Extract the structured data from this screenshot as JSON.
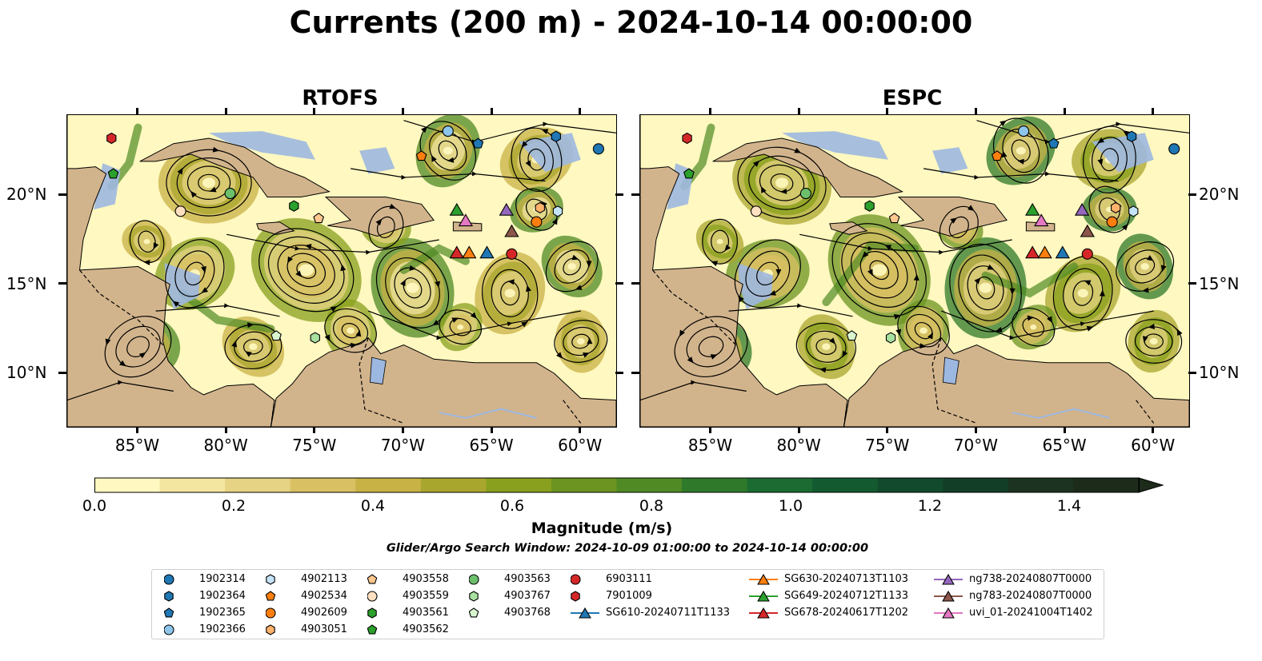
{
  "title": "Currents (200 m) - 2024-10-14 00:00:00",
  "panels": [
    {
      "title": "RTOFS"
    },
    {
      "title": "ESPC"
    }
  ],
  "axes": {
    "x_ticks": [
      "85°W",
      "80°W",
      "75°W",
      "70°W",
      "65°W",
      "60°W"
    ],
    "y_ticks": [
      "20°N",
      "15°N",
      "10°N"
    ]
  },
  "colorbar": {
    "label": "Magnitude (m/s)",
    "ticks": [
      "0.0",
      "0.2",
      "0.4",
      "0.6",
      "0.8",
      "1.0",
      "1.2",
      "1.4"
    ],
    "range": [
      0,
      1.5
    ],
    "extend": "max",
    "colors": [
      "#fff8c0",
      "#f3e6a0",
      "#e6d383",
      "#d9c063",
      "#c8b246",
      "#a9a62e",
      "#88a01e",
      "#6b9420",
      "#4f8a24",
      "#2f7a2a",
      "#1b6b32",
      "#145a30",
      "#114a2c",
      "#123e27",
      "#1b3320",
      "#1c2b1a"
    ]
  },
  "search_window": "Glider/Argo Search Window: 2024-10-09 01:00:00 to 2024-10-14 00:00:00",
  "map_colors": {
    "land": "#d2b48c",
    "shallow": "#9db8e0",
    "river": "#9db8e0"
  },
  "legend": [
    {
      "label": "1902314",
      "marker": "circle",
      "color": "#1f77b4"
    },
    {
      "label": "1902364",
      "marker": "hexagon",
      "color": "#1f77b4"
    },
    {
      "label": "1902365",
      "marker": "pentagon",
      "color": "#1f77b4"
    },
    {
      "label": "1902366",
      "marker": "circle",
      "color": "#8ec5eb"
    },
    {
      "label": "4902113",
      "marker": "hexagon",
      "color": "#c5e3f7"
    },
    {
      "label": "4902534",
      "marker": "pentagon",
      "color": "#ff7f0e"
    },
    {
      "label": "4902609",
      "marker": "circle",
      "color": "#ff7f0e"
    },
    {
      "label": "4903051",
      "marker": "hexagon",
      "color": "#ffb26b"
    },
    {
      "label": "4903558",
      "marker": "pentagon",
      "color": "#ffc890"
    },
    {
      "label": "4903559",
      "marker": "circle",
      "color": "#ffe0c0"
    },
    {
      "label": "4903561",
      "marker": "hexagon",
      "color": "#2ca02c"
    },
    {
      "label": "4903562",
      "marker": "pentagon",
      "color": "#2ca02c"
    },
    {
      "label": "4903563",
      "marker": "circle",
      "color": "#6cc06c"
    },
    {
      "label": "4903767",
      "marker": "hexagon",
      "color": "#a8e0a0"
    },
    {
      "label": "4903768",
      "marker": "pentagon",
      "color": "#d8f5d0"
    },
    {
      "label": "6903111",
      "marker": "circle",
      "color": "#d62728"
    },
    {
      "label": "7901009",
      "marker": "hexagon",
      "color": "#d62728"
    },
    {
      "label": "SG610-20240711T1133",
      "marker": "triangle",
      "color": "#1f77b4"
    },
    {
      "label": "SG630-20240713T1103",
      "marker": "triangle",
      "color": "#ff7f0e"
    },
    {
      "label": "SG649-20240712T1133",
      "marker": "triangle",
      "color": "#2ca02c"
    },
    {
      "label": "SG678-20240617T1202",
      "marker": "triangle",
      "color": "#d62728"
    },
    {
      "label": "ng738-20240807T0000",
      "marker": "triangle",
      "color": "#9467bd"
    },
    {
      "label": "ng783-20240807T0000",
      "marker": "triangle",
      "color": "#8c564b"
    },
    {
      "label": "uvi_01-20241004T1402",
      "marker": "triangle",
      "color": "#e377c2"
    }
  ],
  "markers": [
    {
      "id": "1902314",
      "lon": -59.0,
      "lat": 22.6
    },
    {
      "id": "1902364",
      "lon": -61.4,
      "lat": 23.3
    },
    {
      "id": "1902365",
      "lon": -65.8,
      "lat": 22.9
    },
    {
      "id": "1902366",
      "lon": -67.5,
      "lat": 23.6
    },
    {
      "id": "4902113",
      "lon": -61.3,
      "lat": 19.1
    },
    {
      "id": "4902534",
      "lon": -69.0,
      "lat": 22.2
    },
    {
      "id": "4902609",
      "lon": -62.5,
      "lat": 18.5
    },
    {
      "id": "4903051",
      "lon": -62.3,
      "lat": 19.3
    },
    {
      "id": "4903558",
      "lon": -74.8,
      "lat": 18.7
    },
    {
      "id": "4903559",
      "lon": -82.6,
      "lat": 19.1
    },
    {
      "id": "4903561",
      "lon": -76.2,
      "lat": 19.4
    },
    {
      "id": "4903562",
      "lon": -86.4,
      "lat": 21.2
    },
    {
      "id": "4903563",
      "lon": -79.8,
      "lat": 20.1
    },
    {
      "id": "4903767",
      "lon": -75.0,
      "lat": 12.0
    },
    {
      "id": "4903768",
      "lon": -77.2,
      "lat": 12.1
    },
    {
      "id": "6903111",
      "lon": -63.9,
      "lat": 16.7
    },
    {
      "id": "7901009",
      "lon": -86.5,
      "lat": 23.2
    },
    {
      "id": "SG610-20240711T1133",
      "lon": -65.3,
      "lat": 16.8
    },
    {
      "id": "SG630-20240713T1103",
      "lon": -66.3,
      "lat": 16.8
    },
    {
      "id": "SG649-20240712T1133",
      "lon": -67.0,
      "lat": 19.2
    },
    {
      "id": "SG678-20240617T1202",
      "lon": -67.0,
      "lat": 16.8
    },
    {
      "id": "ng738-20240807T0000",
      "lon": -64.2,
      "lat": 19.2
    },
    {
      "id": "ng783-20240807T0000",
      "lon": -63.9,
      "lat": 18.0
    },
    {
      "id": "uvi_01-20241004T1402",
      "lon": -66.5,
      "lat": 18.6
    }
  ],
  "extent": {
    "lon": [
      -89.0,
      -58.0
    ],
    "lat": [
      7.0,
      24.5
    ]
  }
}
